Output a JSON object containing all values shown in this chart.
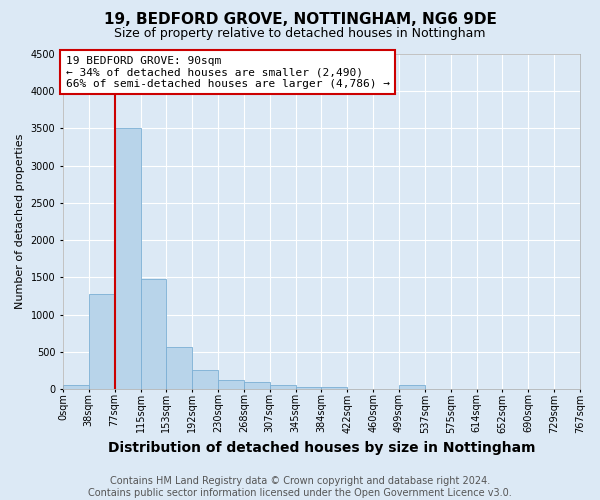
{
  "title": "19, BEDFORD GROVE, NOTTINGHAM, NG6 9DE",
  "subtitle": "Size of property relative to detached houses in Nottingham",
  "xlabel": "Distribution of detached houses by size in Nottingham",
  "ylabel": "Number of detached properties",
  "footer_line1": "Contains HM Land Registry data © Crown copyright and database right 2024.",
  "footer_line2": "Contains public sector information licensed under the Open Government Licence v3.0.",
  "bins": [
    "0sqm",
    "38sqm",
    "77sqm",
    "115sqm",
    "153sqm",
    "192sqm",
    "230sqm",
    "268sqm",
    "307sqm",
    "345sqm",
    "384sqm",
    "422sqm",
    "460sqm",
    "499sqm",
    "537sqm",
    "575sqm",
    "614sqm",
    "652sqm",
    "690sqm",
    "729sqm",
    "767sqm"
  ],
  "values": [
    50,
    1280,
    3500,
    1480,
    570,
    250,
    115,
    90,
    50,
    30,
    30,
    0,
    0,
    50,
    0,
    0,
    0,
    0,
    0,
    0
  ],
  "ylim": [
    0,
    4500
  ],
  "annotation_text1": "19 BEDFORD GROVE: 90sqm",
  "annotation_text2": "← 34% of detached houses are smaller (2,490)",
  "annotation_text3": "66% of semi-detached houses are larger (4,786) →",
  "vline_bin_index": 2,
  "bar_color": "#b8d4ea",
  "bar_edge_color": "#7bafd4",
  "bg_color": "#dce9f5",
  "grid_color": "#ffffff",
  "annotation_box_color": "#ffffff",
  "annotation_box_edge": "#cc0000",
  "vline_color": "#cc0000",
  "title_fontsize": 11,
  "subtitle_fontsize": 9,
  "xlabel_fontsize": 10,
  "ylabel_fontsize": 8,
  "tick_fontsize": 7,
  "annotation_fontsize": 8,
  "footer_fontsize": 7
}
